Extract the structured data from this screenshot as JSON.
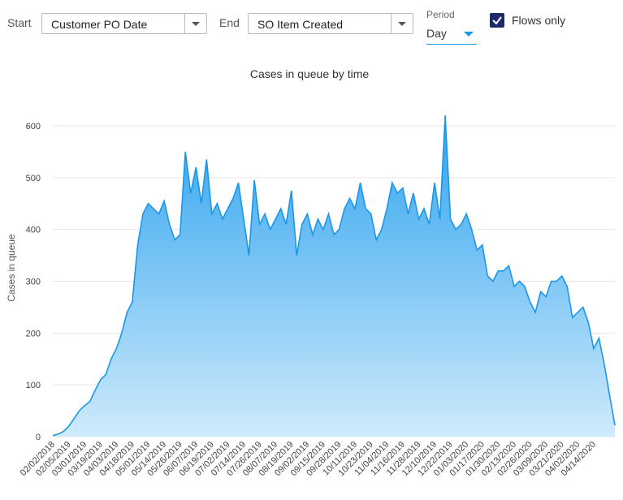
{
  "controls": {
    "start_label": "Start",
    "start_value": "Customer PO Date",
    "end_label": "End",
    "end_value": "SO Item Created",
    "period_label": "Period",
    "period_value": "Day",
    "flows_only": "Flows only"
  },
  "chart_data": {
    "type": "area",
    "title": "Cases in queue by time",
    "y_label": "Cases in queue",
    "color": "#1c96e6",
    "grid": true,
    "ylim": [
      0,
      640
    ],
    "yticks": [
      0,
      100,
      200,
      300,
      400,
      500,
      600
    ],
    "categories": [
      "02/02/2018",
      null,
      null,
      "02/05/2019",
      null,
      null,
      "03/01/2019",
      null,
      null,
      "03/19/2019",
      null,
      null,
      "04/03/2019",
      null,
      null,
      "04/18/2019",
      null,
      null,
      "05/01/2019",
      null,
      null,
      "05/14/2019",
      null,
      null,
      "05/26/2019",
      null,
      null,
      "06/07/2019",
      null,
      null,
      "06/19/2019",
      null,
      null,
      "07/02/2019",
      null,
      null,
      "07/14/2019",
      null,
      null,
      "07/26/2019",
      null,
      null,
      "08/07/2019",
      null,
      null,
      "08/19/2019",
      null,
      null,
      "09/02/2019",
      null,
      null,
      "09/15/2019",
      null,
      null,
      "09/28/2019",
      null,
      null,
      "10/11/2019",
      null,
      null,
      "10/23/2019",
      null,
      null,
      "11/04/2019",
      null,
      null,
      "11/16/2019",
      null,
      null,
      "11/28/2019",
      null,
      null,
      "12/10/2019",
      null,
      null,
      "12/22/2019",
      null,
      null,
      "01/03/2020",
      null,
      null,
      "01/17/2020",
      null,
      null,
      "01/30/2020",
      null,
      null,
      "02/13/2020",
      null,
      null,
      "02/26/2020",
      null,
      null,
      "03/09/2020",
      null,
      null,
      "03/21/2020",
      null,
      null,
      "04/02/2020",
      null,
      null,
      "04/14/2020",
      null,
      null,
      null,
      null
    ],
    "values": [
      2,
      5,
      10,
      20,
      35,
      50,
      60,
      68,
      90,
      110,
      120,
      150,
      170,
      200,
      240,
      260,
      370,
      430,
      450,
      440,
      430,
      455,
      410,
      380,
      390,
      550,
      470,
      520,
      450,
      535,
      430,
      450,
      420,
      440,
      460,
      490,
      420,
      350,
      495,
      410,
      430,
      400,
      420,
      440,
      410,
      475,
      350,
      410,
      430,
      390,
      420,
      400,
      430,
      390,
      400,
      440,
      460,
      440,
      490,
      440,
      430,
      380,
      400,
      440,
      490,
      470,
      480,
      430,
      470,
      420,
      440,
      410,
      490,
      420,
      620,
      420,
      400,
      410,
      430,
      400,
      360,
      370,
      310,
      300,
      320,
      320,
      330,
      290,
      300,
      290,
      260,
      240,
      280,
      270,
      300,
      300,
      310,
      290,
      230,
      240,
      250,
      220,
      170,
      190,
      140,
      80,
      22
    ]
  }
}
